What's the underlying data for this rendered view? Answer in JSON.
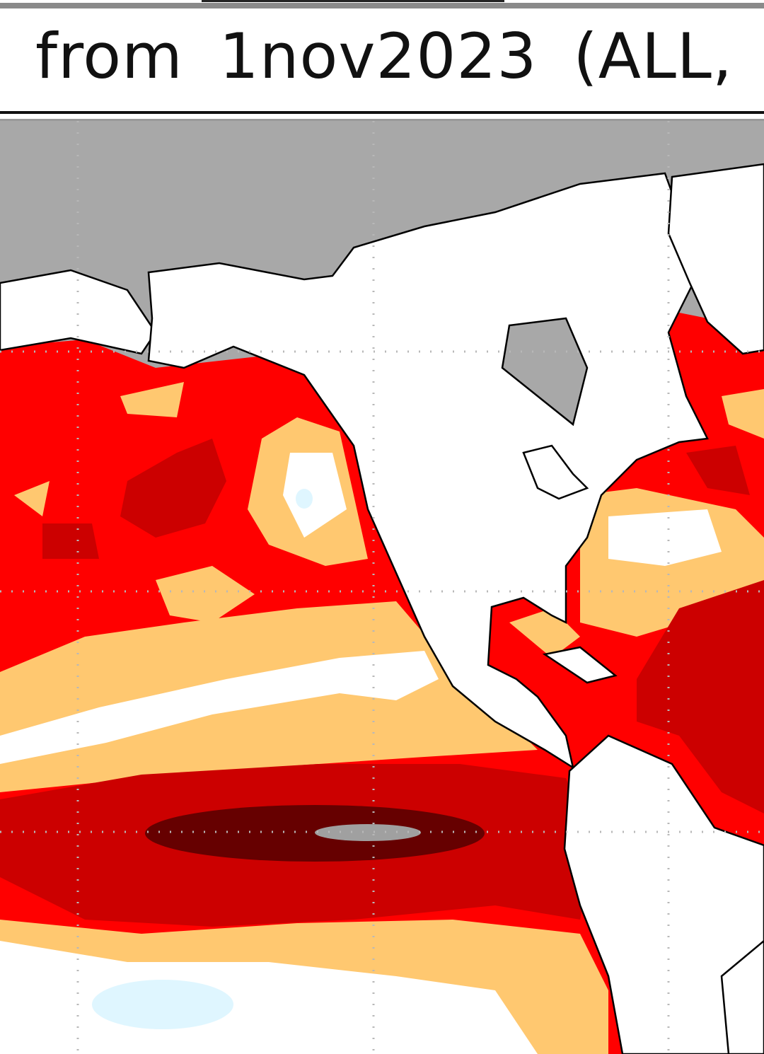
{
  "header": {
    "title": "from 1nov2023 (ALL,"
  }
}
